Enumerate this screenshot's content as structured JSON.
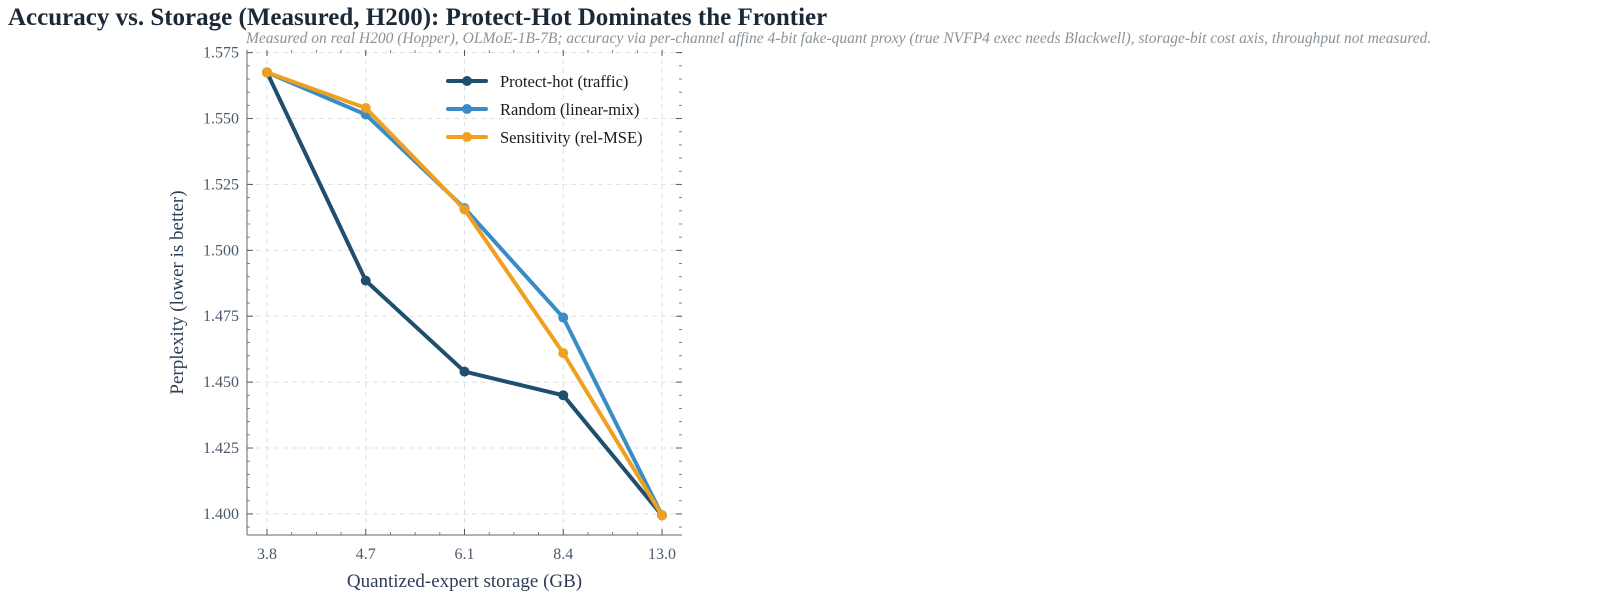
{
  "chart_data": {
    "type": "line",
    "title": "Accuracy vs. Storage (Measured, H200): Protect-Hot Dominates the Frontier",
    "subtitle": "Measured on real H200 (Hopper), OLMoE-1B-7B; accuracy via per-channel affine 4-bit fake-quant proxy (true NVFP4 exec needs Blackwell), storage-bit cost axis, throughput not measured.",
    "xlabel": "Quantized-expert storage (GB)",
    "ylabel": "Perplexity (lower is better)",
    "categories": [
      "3.8",
      "4.7",
      "6.1",
      "8.4",
      "13.0"
    ],
    "ylim": [
      1.392,
      1.576
    ],
    "yticks": [
      "1.400",
      "1.425",
      "1.450",
      "1.475",
      "1.500",
      "1.525",
      "1.550",
      "1.575"
    ],
    "grid": true,
    "legend_position": "top-right",
    "series": [
      {
        "name": "Protect-hot (traffic)",
        "color": "#1f4e6e",
        "values": [
          1.5675,
          1.4885,
          1.454,
          1.445,
          1.3995
        ]
      },
      {
        "name": "Random (linear-mix)",
        "color": "#3a8cc6",
        "values": [
          1.5675,
          1.5515,
          1.516,
          1.4745,
          1.3995
        ]
      },
      {
        "name": "Sensitivity (rel-MSE)",
        "color": "#f0a020",
        "values": [
          1.5675,
          1.554,
          1.5155,
          1.461,
          1.3995
        ]
      }
    ]
  }
}
